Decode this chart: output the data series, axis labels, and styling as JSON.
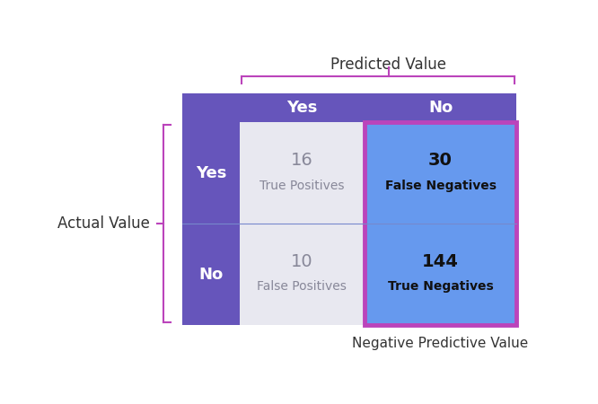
{
  "title_predicted": "Predicted Value",
  "title_actual": "Actual Value",
  "col_headers": [
    "Yes",
    "No"
  ],
  "row_headers": [
    "Yes",
    "No"
  ],
  "values": [
    [
      16,
      30
    ],
    [
      10,
      144
    ]
  ],
  "labels": [
    [
      "True Positives",
      "False Negatives"
    ],
    [
      "False Positives",
      "True Negatives"
    ]
  ],
  "header_bg_color": "#6655bb",
  "row_label_bg_color": "#6655bb",
  "cell_color_grey": "#e8e8f0",
  "cell_color_blue": "#6699ee",
  "highlight_color": "#bb44bb",
  "text_color_header": "#ffffff",
  "text_color_grey": "#888899",
  "text_color_blue": "#111111",
  "text_color_axis": "#333333",
  "npv_label": "Negative Predictive Value",
  "background_color": "#ffffff"
}
